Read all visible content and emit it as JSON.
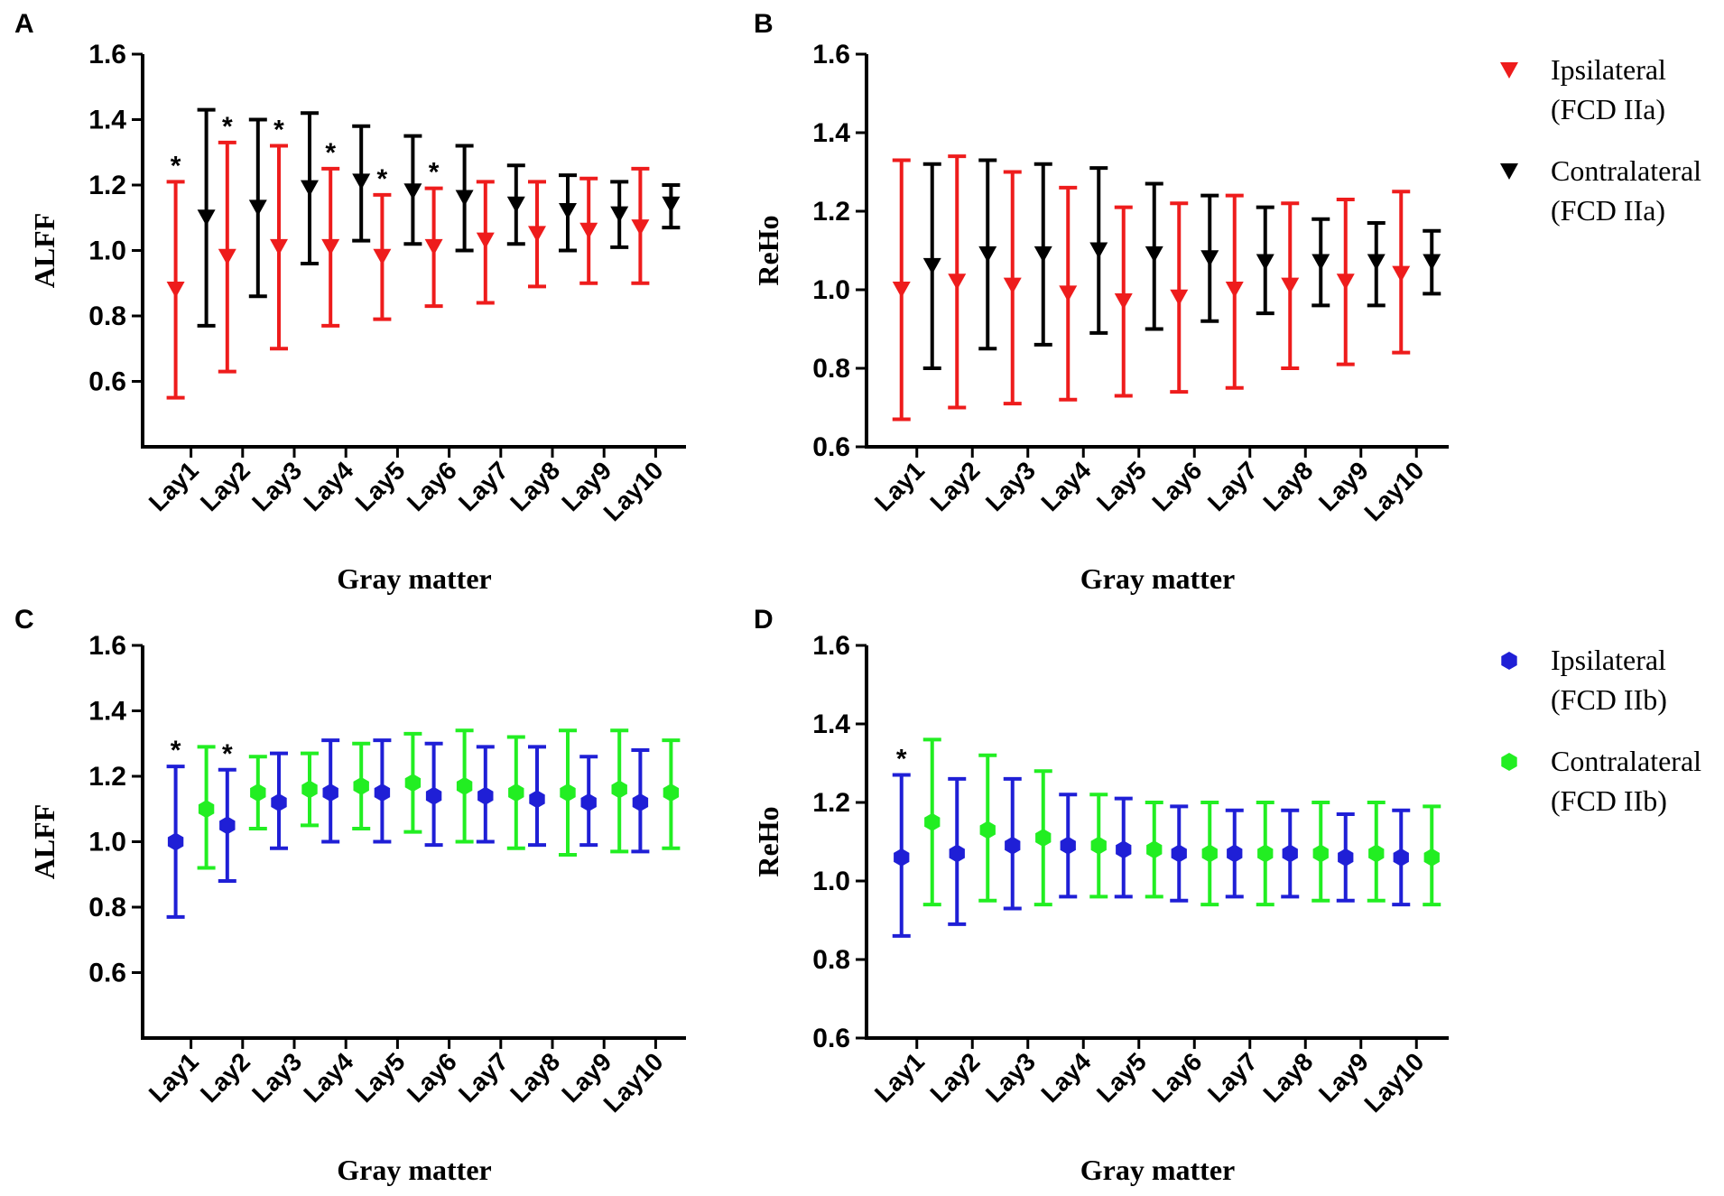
{
  "chart_data": [
    {
      "panel": "A",
      "type": "errorbar",
      "xlabel": "Gray matter",
      "ylabel": "ALFF",
      "ylim": [
        0.4,
        1.6
      ],
      "yticks": [
        "0.6",
        "0.8",
        "1.0",
        "1.2",
        "1.4",
        "1.6"
      ],
      "yticks_values": [
        0.6,
        0.8,
        1.0,
        1.2,
        1.4,
        1.6
      ],
      "categories": [
        "Lay1",
        "Lay2",
        "Lay3",
        "Lay4",
        "Lay5",
        "Lay6",
        "Lay7",
        "Lay8",
        "Lay9",
        "Lay10"
      ],
      "marker": "triangle-down",
      "series": [
        {
          "name": "Ipsilateral (FCD IIa)",
          "color": "#ee1c1c",
          "means": [
            0.88,
            0.98,
            1.01,
            1.01,
            0.98,
            1.01,
            1.03,
            1.05,
            1.06,
            1.07
          ],
          "lower": [
            0.55,
            0.63,
            0.7,
            0.77,
            0.79,
            0.83,
            0.84,
            0.89,
            0.9,
            0.9
          ],
          "upper": [
            1.21,
            1.33,
            1.32,
            1.25,
            1.17,
            1.19,
            1.21,
            1.21,
            1.22,
            1.25
          ]
        },
        {
          "name": "Contralateral (FCD IIa)",
          "color": "#000000",
          "means": [
            1.1,
            1.13,
            1.19,
            1.21,
            1.18,
            1.16,
            1.14,
            1.12,
            1.11,
            1.14
          ],
          "lower": [
            0.77,
            0.86,
            0.96,
            1.03,
            1.02,
            1.0,
            1.02,
            1.0,
            1.01,
            1.07
          ],
          "upper": [
            1.43,
            1.4,
            1.42,
            1.38,
            1.35,
            1.32,
            1.26,
            1.23,
            1.21,
            1.2
          ]
        }
      ],
      "significance": [
        "*",
        "*",
        "*",
        "*",
        "*",
        "*",
        "",
        "",
        "",
        ""
      ]
    },
    {
      "panel": "B",
      "type": "errorbar",
      "xlabel": "Gray matter",
      "ylabel": "ReHo",
      "ylim": [
        0.6,
        1.6
      ],
      "yticks": [
        "0.6",
        "0.8",
        "1.0",
        "1.2",
        "1.4",
        "1.6"
      ],
      "yticks_values": [
        0.6,
        0.8,
        1.0,
        1.2,
        1.4,
        1.6
      ],
      "categories": [
        "Lay1",
        "Lay2",
        "Lay3",
        "Lay4",
        "Lay5",
        "Lay6",
        "Lay7",
        "Lay8",
        "Lay9",
        "Lay10"
      ],
      "marker": "triangle-down",
      "series": [
        {
          "name": "Ipsilateral (FCD IIa)",
          "color": "#ee1c1c",
          "means": [
            1.0,
            1.02,
            1.01,
            0.99,
            0.97,
            0.98,
            1.0,
            1.01,
            1.02,
            1.04
          ],
          "lower": [
            0.67,
            0.7,
            0.71,
            0.72,
            0.73,
            0.74,
            0.75,
            0.8,
            0.81,
            0.84
          ],
          "upper": [
            1.33,
            1.34,
            1.3,
            1.26,
            1.21,
            1.22,
            1.24,
            1.22,
            1.23,
            1.25
          ]
        },
        {
          "name": "Contralateral (FCD IIa)",
          "color": "#000000",
          "means": [
            1.06,
            1.09,
            1.09,
            1.1,
            1.09,
            1.08,
            1.07,
            1.07,
            1.07,
            1.07
          ],
          "lower": [
            0.8,
            0.85,
            0.86,
            0.89,
            0.9,
            0.92,
            0.94,
            0.96,
            0.96,
            0.99
          ],
          "upper": [
            1.32,
            1.33,
            1.32,
            1.31,
            1.27,
            1.24,
            1.21,
            1.18,
            1.17,
            1.15
          ]
        }
      ],
      "significance": [
        "",
        "",
        "",
        "",
        "",
        "",
        "",
        "",
        "",
        ""
      ]
    },
    {
      "panel": "C",
      "type": "errorbar",
      "xlabel": "Gray matter",
      "ylabel": "ALFF",
      "ylim": [
        0.4,
        1.6
      ],
      "yticks": [
        "0.6",
        "0.8",
        "1.0",
        "1.2",
        "1.4",
        "1.6"
      ],
      "yticks_values": [
        0.6,
        0.8,
        1.0,
        1.2,
        1.4,
        1.6
      ],
      "categories": [
        "Lay1",
        "Lay2",
        "Lay3",
        "Lay4",
        "Lay5",
        "Lay6",
        "Lay7",
        "Lay8",
        "Lay9",
        "Lay10"
      ],
      "marker": "hexagon",
      "series": [
        {
          "name": "Ipsilateral (FCD IIb)",
          "color": "#1f1fd6",
          "means": [
            1.0,
            1.05,
            1.12,
            1.15,
            1.15,
            1.14,
            1.14,
            1.13,
            1.12,
            1.12
          ],
          "lower": [
            0.77,
            0.88,
            0.98,
            1.0,
            1.0,
            0.99,
            1.0,
            0.99,
            0.99,
            0.97
          ],
          "upper": [
            1.23,
            1.22,
            1.27,
            1.31,
            1.31,
            1.3,
            1.29,
            1.29,
            1.26,
            1.28
          ]
        },
        {
          "name": "Contralateral (FCD IIb)",
          "color": "#22ee22",
          "means": [
            1.1,
            1.15,
            1.16,
            1.17,
            1.18,
            1.17,
            1.15,
            1.15,
            1.16,
            1.15
          ],
          "lower": [
            0.92,
            1.04,
            1.05,
            1.04,
            1.03,
            1.0,
            0.98,
            0.96,
            0.97,
            0.98
          ],
          "upper": [
            1.29,
            1.26,
            1.27,
            1.3,
            1.33,
            1.34,
            1.32,
            1.34,
            1.34,
            1.31
          ]
        }
      ],
      "significance": [
        "*",
        "*",
        "",
        "",
        "",
        "",
        "",
        "",
        "",
        ""
      ]
    },
    {
      "panel": "D",
      "type": "errorbar",
      "xlabel": "Gray matter",
      "ylabel": "ReHo",
      "ylim": [
        0.6,
        1.6
      ],
      "yticks": [
        "0.6",
        "0.8",
        "1.0",
        "1.2",
        "1.4",
        "1.6"
      ],
      "yticks_values": [
        0.6,
        0.8,
        1.0,
        1.2,
        1.4,
        1.6
      ],
      "categories": [
        "Lay1",
        "Lay2",
        "Lay3",
        "Lay4",
        "Lay5",
        "Lay6",
        "Lay7",
        "Lay8",
        "Lay9",
        "Lay10"
      ],
      "marker": "hexagon",
      "series": [
        {
          "name": "Ipsilateral (FCD IIb)",
          "color": "#1f1fd6",
          "means": [
            1.06,
            1.07,
            1.09,
            1.09,
            1.08,
            1.07,
            1.07,
            1.07,
            1.06,
            1.06
          ],
          "lower": [
            0.86,
            0.89,
            0.93,
            0.96,
            0.96,
            0.95,
            0.96,
            0.96,
            0.95,
            0.94
          ],
          "upper": [
            1.27,
            1.26,
            1.26,
            1.22,
            1.21,
            1.19,
            1.18,
            1.18,
            1.17,
            1.18
          ]
        },
        {
          "name": "Contralateral (FCD IIb)",
          "color": "#22ee22",
          "means": [
            1.15,
            1.13,
            1.11,
            1.09,
            1.08,
            1.07,
            1.07,
            1.07,
            1.07,
            1.06
          ],
          "lower": [
            0.94,
            0.95,
            0.94,
            0.96,
            0.96,
            0.94,
            0.94,
            0.95,
            0.95,
            0.94
          ],
          "upper": [
            1.36,
            1.32,
            1.28,
            1.22,
            1.2,
            1.2,
            1.2,
            1.2,
            1.2,
            1.19
          ]
        }
      ],
      "significance": [
        "*",
        "",
        "",
        "",
        "",
        "",
        "",
        "",
        "",
        ""
      ]
    }
  ],
  "legends": [
    {
      "entries": [
        {
          "line1": "Ipsilateral",
          "line2": "(FCD IIa)",
          "color": "#ee1c1c",
          "marker": "triangle-down"
        },
        {
          "line1": "Contralateral",
          "line2": "(FCD IIa)",
          "color": "#000000",
          "marker": "triangle-down"
        }
      ]
    },
    {
      "entries": [
        {
          "line1": "Ipsilateral",
          "line2": "(FCD IIb)",
          "color": "#1f1fd6",
          "marker": "hexagon"
        },
        {
          "line1": "Contralateral",
          "line2": "(FCD IIb)",
          "color": "#22ee22",
          "marker": "hexagon"
        }
      ]
    }
  ]
}
